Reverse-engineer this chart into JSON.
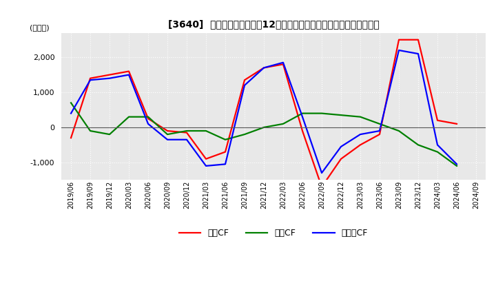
{
  "title": "[3640]  キャッシュフローの12か月移動合計の対前年同期増減額の推移",
  "ylabel": "(百万円)",
  "ylim": [
    -1500,
    2700
  ],
  "yticks": [
    -1000,
    0,
    1000,
    2000
  ],
  "background_color": "#ffffff",
  "plot_bg_color": "#e8e8e8",
  "grid_color": "#ffffff",
  "dates": [
    "2019/06",
    "2019/09",
    "2019/12",
    "2020/03",
    "2020/06",
    "2020/09",
    "2020/12",
    "2021/03",
    "2021/06",
    "2021/09",
    "2021/12",
    "2022/03",
    "2022/06",
    "2022/09",
    "2022/12",
    "2023/03",
    "2023/06",
    "2023/09",
    "2023/12",
    "2024/03",
    "2024/06",
    "2024/09"
  ],
  "operating_cf": [
    -300,
    1400,
    1500,
    1600,
    250,
    -100,
    -150,
    -900,
    -700,
    1350,
    1700,
    1800,
    -100,
    -1700,
    -900,
    -500,
    -200,
    2500,
    2500,
    200,
    100,
    null
  ],
  "investing_cf": [
    700,
    -100,
    -200,
    300,
    300,
    -200,
    -100,
    -100,
    -350,
    -200,
    0,
    100,
    400,
    400,
    350,
    300,
    100,
    -100,
    -500,
    -700,
    -1100,
    null
  ],
  "free_cf": [
    400,
    1350,
    1400,
    1500,
    100,
    -350,
    -350,
    -1100,
    -1050,
    1200,
    1700,
    1850,
    300,
    -1300,
    -550,
    -200,
    -100,
    2200,
    2100,
    -500,
    -1050,
    null
  ],
  "color_operating": "#ff0000",
  "color_investing": "#008000",
  "color_free": "#0000ff",
  "legend_labels": [
    "営業CF",
    "投資CF",
    "フリーCF"
  ]
}
